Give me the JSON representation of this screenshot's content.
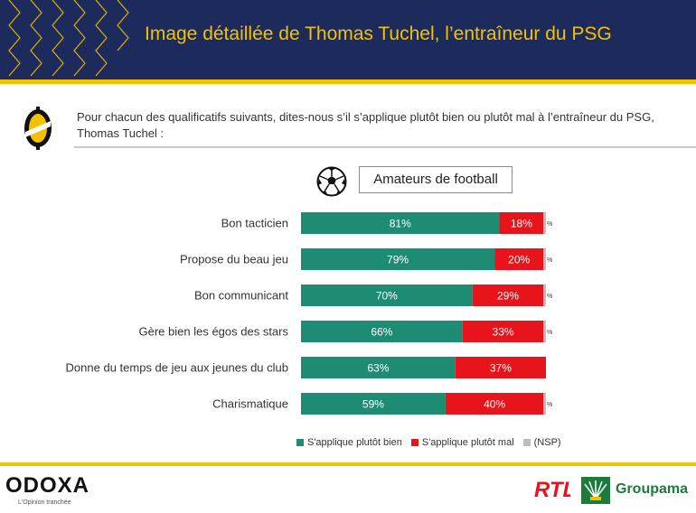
{
  "header": {
    "title": "Image détaillée de Thomas Tuchel, l’entraîneur du PSG"
  },
  "question": {
    "text": "Pour chacun des qualificatifs suivants, dites-nous s’il s’applique plutôt bien ou plutôt mal à l’entraîneur du PSG, Thomas Tuchel :"
  },
  "segment": {
    "label": "Amateurs de football",
    "icon": "soccer-ball-icon"
  },
  "colors": {
    "navy": "#1c2a5c",
    "gold": "#f2c200",
    "good": "#1e8c72",
    "bad": "#e8141b",
    "nsp": "#bdbdbd"
  },
  "chart_data": {
    "type": "bar",
    "orientation": "horizontal",
    "stacked": true,
    "categories": [
      "Bon tacticien",
      "Propose du beau jeu",
      "Bon communicant",
      "Gère bien les égos des stars",
      "Donne du temps de jeu aux jeunes du club",
      "Charismatique"
    ],
    "series": [
      {
        "name": "S'applique plutôt bien",
        "values": [
          81,
          79,
          70,
          66,
          63,
          59
        ],
        "labels": [
          "81%",
          "79%",
          "70%",
          "66%",
          "63%",
          "59%"
        ],
        "color": "#1e8c72"
      },
      {
        "name": "S'applique plutôt mal",
        "values": [
          18,
          20,
          29,
          33,
          37,
          40
        ],
        "labels": [
          "18%",
          "20%",
          "29%",
          "33%",
          "37%",
          "40%"
        ],
        "color": "#e8141b"
      },
      {
        "name": "(NSP)",
        "values": [
          1,
          1,
          1,
          1,
          0,
          1
        ],
        "labels": [
          "%",
          "%",
          "%",
          "%",
          "",
          "%"
        ],
        "color": "#bdbdbd"
      }
    ],
    "xlim": [
      0,
      100
    ],
    "legend_position": "bottom",
    "grid": false
  },
  "footer": {
    "odoxa_logo": "ODOXA",
    "odoxa_tagline": "L'Opinion tranchée",
    "rtl_logo": "RTL",
    "groupama_logo": "Groupama"
  }
}
